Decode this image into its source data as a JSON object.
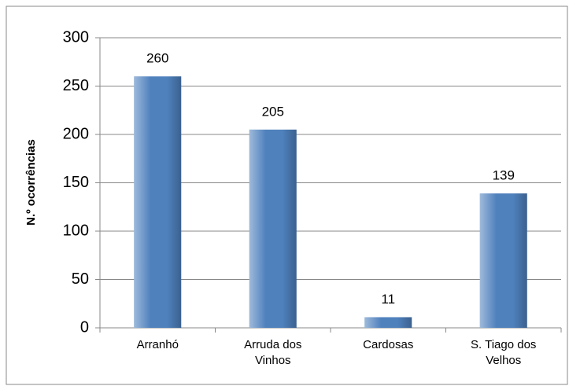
{
  "chart_data": {
    "type": "bar",
    "y_label": "N.º ocorrências",
    "categories": [
      "Arranhó",
      "Arruda dos Vinhos",
      "Cardosas",
      "S. Tiago dos Velhos"
    ],
    "values": [
      260,
      205,
      11,
      139
    ],
    "color": "#4f81bd",
    "ylim": [
      0,
      300
    ],
    "yticks": [
      0,
      50,
      100,
      150,
      200,
      250,
      300
    ],
    "grid": true
  }
}
